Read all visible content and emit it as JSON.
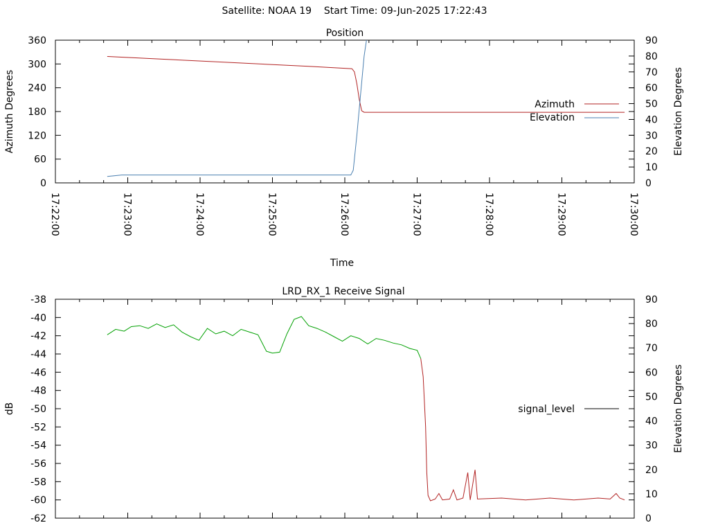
{
  "page": {
    "header": "Satellite: NOAA 19    Start Time: 09-Jun-2025 17:22:43"
  },
  "chart_data": [
    {
      "type": "line",
      "title": "Position",
      "xlabel": "Time",
      "ylabel": "Azimuth Degrees",
      "y2label": "Elevation Degrees",
      "xlim": [
        "17:22:00",
        "17:30:00"
      ],
      "ylim": [
        0,
        360
      ],
      "y2lim": [
        0,
        90
      ],
      "x_ticks": [
        "17:22:00",
        "17:23:00",
        "17:24:00",
        "17:25:00",
        "17:26:00",
        "17:27:00",
        "17:28:00",
        "17:29:00",
        "17:30:00"
      ],
      "y_ticks": [
        "0",
        "60",
        "120",
        "180",
        "240",
        "300",
        "360"
      ],
      "y2_ticks": [
        "0",
        "10",
        "20",
        "30",
        "40",
        "50",
        "60",
        "70",
        "80",
        "90"
      ],
      "legend_position": "right",
      "grid": false,
      "series": [
        {
          "name": "Azimuth",
          "axis": "y",
          "color": "#b22222",
          "points": [
            [
              "17:22:43",
              319
            ],
            [
              "17:23:30",
              312
            ],
            [
              "17:24:30",
              303
            ],
            [
              "17:25:30",
              294
            ],
            [
              "17:26:00",
              289
            ],
            [
              "17:26:06",
              288
            ],
            [
              "17:26:08",
              280
            ],
            [
              "17:26:10",
              250
            ],
            [
              "17:26:12",
              210
            ],
            [
              "17:26:14",
              182
            ],
            [
              "17:26:16",
              178
            ],
            [
              "17:26:30",
              178
            ],
            [
              "17:27:30",
              178
            ],
            [
              "17:28:30",
              178
            ],
            [
              "17:29:30",
              178
            ],
            [
              "17:29:52",
              178
            ]
          ]
        },
        {
          "name": "Elevation",
          "axis": "y2",
          "color": "#4a7fb0",
          "points": [
            [
              "17:22:43",
              4
            ],
            [
              "17:22:55",
              5
            ],
            [
              "17:23:30",
              5
            ],
            [
              "17:24:30",
              5
            ],
            [
              "17:25:30",
              5
            ],
            [
              "17:26:05",
              5
            ],
            [
              "17:26:07",
              8
            ],
            [
              "17:26:10",
              30
            ],
            [
              "17:26:13",
              55
            ],
            [
              "17:26:16",
              80
            ],
            [
              "17:26:18",
              90
            ]
          ]
        }
      ]
    },
    {
      "type": "line",
      "title": "LRD_RX_1 Receive Signal",
      "xlabel": "",
      "ylabel": "dB",
      "y2label": "Elevation Degrees",
      "xlim": [
        "17:22:00",
        "17:30:00"
      ],
      "ylim": [
        -62,
        -38
      ],
      "y2lim": [
        0,
        90
      ],
      "y_ticks": [
        "-62",
        "-60",
        "-58",
        "-56",
        "-54",
        "-52",
        "-50",
        "-48",
        "-46",
        "-44",
        "-42",
        "-40",
        "-38"
      ],
      "y2_ticks": [
        "0",
        "10",
        "20",
        "30",
        "40",
        "50",
        "60",
        "70",
        "80",
        "90"
      ],
      "legend_position": "right",
      "grid": false,
      "series": [
        {
          "name": "signal_level",
          "axis": "y",
          "color_locked": "#00a000",
          "color_unlocked": "#b22222",
          "legend_color": "#000000",
          "points": [
            [
              "17:22:43",
              -41.9
            ],
            [
              "17:22:50",
              -41.3
            ],
            [
              "17:22:57",
              -41.5
            ],
            [
              "17:23:03",
              -41.0
            ],
            [
              "17:23:10",
              -40.9
            ],
            [
              "17:23:17",
              -41.2
            ],
            [
              "17:23:24",
              -40.7
            ],
            [
              "17:23:31",
              -41.1
            ],
            [
              "17:23:38",
              -40.8
            ],
            [
              "17:23:45",
              -41.6
            ],
            [
              "17:23:52",
              -42.1
            ],
            [
              "17:23:59",
              -42.5
            ],
            [
              "17:24:06",
              -41.2
            ],
            [
              "17:24:13",
              -41.8
            ],
            [
              "17:24:20",
              -41.5
            ],
            [
              "17:24:27",
              -42.0
            ],
            [
              "17:24:34",
              -41.3
            ],
            [
              "17:24:41",
              -41.6
            ],
            [
              "17:24:48",
              -41.9
            ],
            [
              "17:24:55",
              -43.7
            ],
            [
              "17:25:00",
              -43.9
            ],
            [
              "17:25:06",
              -43.8
            ],
            [
              "17:25:12",
              -41.8
            ],
            [
              "17:25:18",
              -40.2
            ],
            [
              "17:25:24",
              -39.9
            ],
            [
              "17:25:30",
              -40.9
            ],
            [
              "17:25:37",
              -41.2
            ],
            [
              "17:25:44",
              -41.6
            ],
            [
              "17:25:51",
              -42.1
            ],
            [
              "17:25:58",
              -42.6
            ],
            [
              "17:26:05",
              -42.0
            ],
            [
              "17:26:12",
              -42.3
            ],
            [
              "17:26:19",
              -42.9
            ],
            [
              "17:26:26",
              -42.3
            ],
            [
              "17:26:33",
              -42.5
            ],
            [
              "17:26:40",
              -42.8
            ],
            [
              "17:26:47",
              -43.0
            ],
            [
              "17:26:54",
              -43.4
            ],
            [
              "17:27:00",
              -43.6
            ],
            [
              "17:27:03",
              -44.5
            ],
            [
              "17:27:05",
              -46.5
            ],
            [
              "17:27:07",
              -52.0
            ],
            [
              "17:27:08",
              -57.0
            ],
            [
              "17:27:09",
              -59.5
            ],
            [
              "17:27:11",
              -60.1
            ],
            [
              "17:27:15",
              -59.9
            ],
            [
              "17:27:18",
              -59.3
            ],
            [
              "17:27:21",
              -60.0
            ],
            [
              "17:27:27",
              -59.9
            ],
            [
              "17:27:30",
              -58.9
            ],
            [
              "17:27:33",
              -60.0
            ],
            [
              "17:27:38",
              -59.8
            ],
            [
              "17:27:42",
              -57.0
            ],
            [
              "17:27:44",
              -60.0
            ],
            [
              "17:27:48",
              -56.7
            ],
            [
              "17:27:50",
              -59.9
            ],
            [
              "17:28:10",
              -59.8
            ],
            [
              "17:28:30",
              -60.0
            ],
            [
              "17:28:50",
              -59.8
            ],
            [
              "17:29:10",
              -60.0
            ],
            [
              "17:29:30",
              -59.8
            ],
            [
              "17:29:40",
              -59.9
            ],
            [
              "17:29:45",
              -59.3
            ],
            [
              "17:29:48",
              -59.8
            ],
            [
              "17:29:52",
              -60.0
            ]
          ]
        }
      ]
    }
  ]
}
